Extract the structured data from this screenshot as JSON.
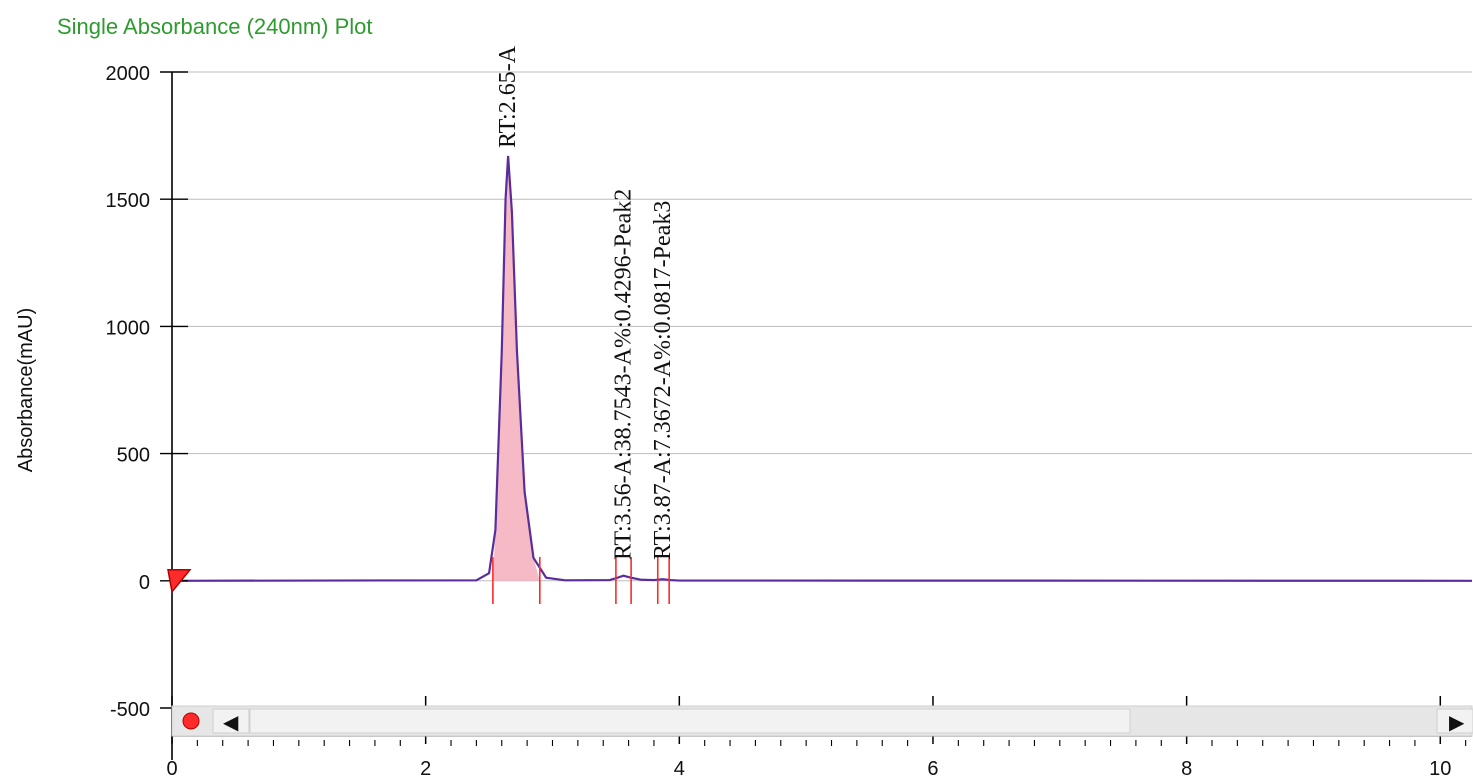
{
  "title": "Single Absorbance (240nm) Plot",
  "ylabel": "Absorbance(mAU)",
  "colors": {
    "title": "#2e9b2e",
    "trace": "#5a2d9c",
    "peak_fill": "#f4b6c2",
    "marker": "#ff2a2a",
    "grid": "#bdbdbd",
    "axis": "#000000",
    "scrollbar_track": "#e6e6e6",
    "scrollbar_thumb": "#f2f2f2"
  },
  "chart_data": {
    "type": "line",
    "title": "Single Absorbance (240nm) Plot",
    "xlabel": "",
    "ylabel": "Absorbance(mAU)",
    "xlim": [
      0,
      10.25
    ],
    "ylim": [
      -500,
      2000
    ],
    "grid": true,
    "x_ticks": [
      "0",
      "2",
      "4",
      "6",
      "8",
      "10"
    ],
    "y_ticks": [
      "2000",
      "1500",
      "1000",
      "500",
      "0",
      "-500"
    ],
    "series": [
      {
        "points": [
          [
            0,
            0
          ],
          [
            2.4,
            2
          ],
          [
            2.5,
            30
          ],
          [
            2.55,
            200
          ],
          [
            2.6,
            900
          ],
          [
            2.63,
            1500
          ],
          [
            2.65,
            1670
          ],
          [
            2.68,
            1450
          ],
          [
            2.72,
            900
          ],
          [
            2.78,
            350
          ],
          [
            2.85,
            90
          ],
          [
            2.95,
            12
          ],
          [
            3.1,
            2
          ],
          [
            3.45,
            3
          ],
          [
            3.5,
            10
          ],
          [
            3.56,
            20
          ],
          [
            3.62,
            12
          ],
          [
            3.7,
            4
          ],
          [
            3.8,
            3
          ],
          [
            3.87,
            6
          ],
          [
            3.93,
            3
          ],
          [
            4.0,
            1
          ],
          [
            10.25,
            0
          ]
        ]
      }
    ],
    "peaks": [
      {
        "label": "RT:2.65-A",
        "rt": 2.65,
        "start": 2.53,
        "end": 2.9
      },
      {
        "label": "RT:3.56-A:38.7543-A%:0.4296-Peak2",
        "rt": 3.56,
        "start": 3.5,
        "end": 3.62
      },
      {
        "label": "RT:3.87-A:7.3672-A%:0.0817-Peak3",
        "rt": 3.87,
        "start": 3.83,
        "end": 3.92
      }
    ]
  },
  "scrollbar": {
    "left_arrow": "◀",
    "right_arrow": "▶"
  }
}
